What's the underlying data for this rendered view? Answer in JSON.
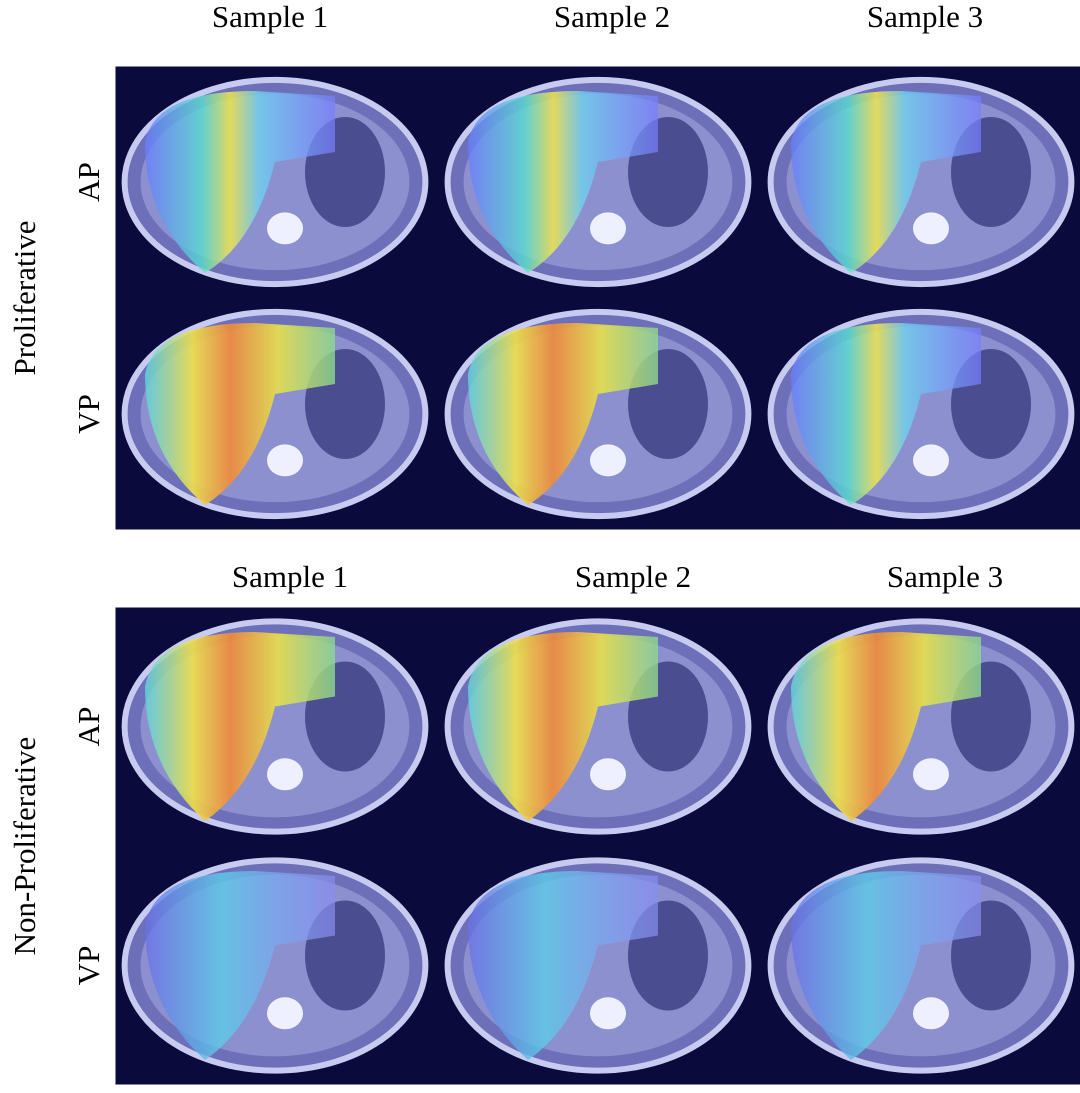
{
  "panels": [
    {
      "group": "Proliferative",
      "columns": [
        "Sample 1",
        "Sample 2",
        "Sample 3"
      ],
      "rows": [
        "AP",
        "VP"
      ]
    },
    {
      "group": "Non-Proliferative",
      "columns": [
        "Sample 1",
        "Sample 2",
        "Sample 3"
      ],
      "rows": [
        "AP",
        "VP"
      ]
    }
  ]
}
